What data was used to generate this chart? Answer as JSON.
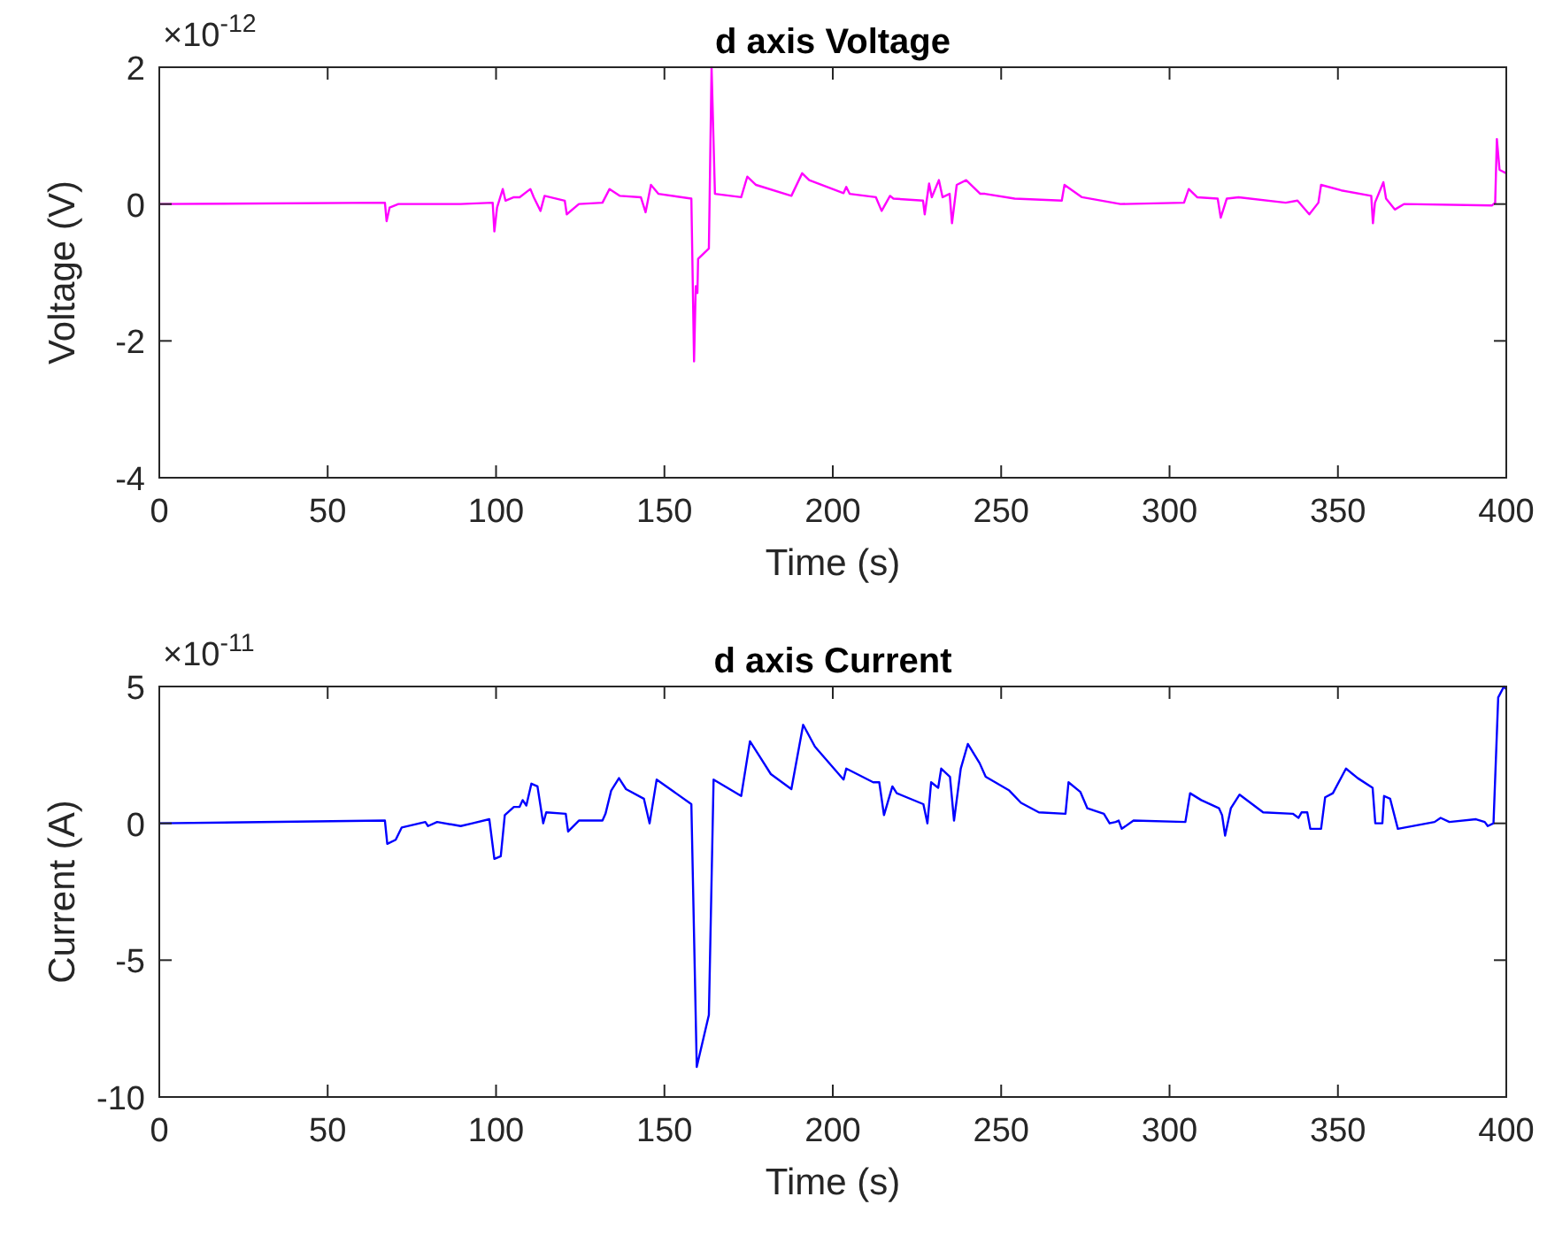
{
  "chart_data": [
    {
      "type": "line",
      "title": "d axis Voltage",
      "xlabel": "Time (s)",
      "ylabel": "Voltage (V)",
      "annotations": [
        "×10$^{-12}$"
      ],
      "xlim": [
        0,
        400
      ],
      "xticks": [
        0,
        50,
        100,
        150,
        200,
        250,
        300,
        350,
        400
      ],
      "ylim": [
        -4,
        2
      ],
      "yticks": [
        -4,
        -2,
        0,
        2
      ],
      "grid": false,
      "line_style": "solid",
      "marker": "none",
      "series": [
        {
          "color": "#ff00ff",
          "x": [
            0,
            67,
            67.5,
            68.4,
            71,
            89.5,
            99,
            99.5,
            100.3,
            102,
            102.8,
            105.3,
            107,
            110.2,
            111.2,
            113.2,
            114.4,
            120.4,
            121,
            124.6,
            131.6,
            133.7,
            136.8,
            143,
            144.4,
            146,
            148.2,
            158,
            158.8,
            159.3,
            159.8,
            160,
            163.2,
            164,
            165,
            172.8,
            174.6,
            177.2,
            187.7,
            190.9,
            193,
            203.2,
            204,
            205,
            212.8,
            214.5,
            217,
            218,
            226.8,
            227.3,
            228.6,
            229.4,
            231.5,
            232.6,
            234.7,
            235.4,
            236.8,
            239.6,
            243.8,
            245.2,
            254,
            268,
            268.8,
            274,
            285.4,
            304.3,
            305.7,
            308.2,
            314.3,
            315.2,
            317,
            320.5,
            334.5,
            338,
            341.5,
            344.2,
            345,
            351,
            359.9,
            360.4,
            361,
            363.5,
            364.3,
            366.9,
            369.6,
            395.8,
            396.7,
            397.2,
            398,
            400
          ],
          "values": [
            0,
            0.02,
            -0.25,
            -0.05,
            0,
            0,
            0.02,
            -0.4,
            -0.05,
            0.22,
            0.05,
            0.1,
            0.1,
            0.22,
            0.1,
            -0.1,
            0.12,
            0.05,
            -0.15,
            0,
            0.02,
            0.22,
            0.12,
            0.1,
            -0.12,
            0.28,
            0.15,
            0.08,
            -2.3,
            -1.2,
            -1.3,
            -0.8,
            -0.65,
            2,
            0.15,
            0.1,
            0.4,
            0.28,
            0.12,
            0.45,
            0.35,
            0.16,
            0.25,
            0.15,
            0.1,
            -0.1,
            0.12,
            0.08,
            0.05,
            -0.15,
            0.3,
            0.1,
            0.35,
            0.1,
            0.15,
            -0.28,
            0.28,
            0.35,
            0.15,
            0.15,
            0.08,
            0.05,
            0.28,
            0.1,
            0,
            0.02,
            0.22,
            0.1,
            0.08,
            -0.2,
            0.08,
            0.1,
            0.02,
            0.05,
            -0.15,
            0.02,
            0.28,
            0.2,
            0.12,
            -0.28,
            0.02,
            0.32,
            0.08,
            -0.08,
            0,
            -0.02,
            0.02,
            0.95,
            0.5,
            0.45
          ]
        }
      ]
    },
    {
      "type": "line",
      "title": "d axis Current",
      "xlabel": "Time (s)",
      "ylabel": "Current (A)",
      "annotations": [
        "×10$^{-11}$"
      ],
      "xlim": [
        0,
        400
      ],
      "xticks": [
        0,
        50,
        100,
        150,
        200,
        250,
        300,
        350,
        400
      ],
      "ylim": [
        -10,
        5
      ],
      "yticks": [
        -10,
        -5,
        0,
        5
      ],
      "grid": false,
      "line_style": "solid",
      "marker": "none",
      "series": [
        {
          "color": "#0000ff",
          "x": [
            0,
            67,
            67.7,
            70.2,
            72,
            79,
            79.8,
            82.5,
            89.5,
            93,
            98,
            99.5,
            101.4,
            102.6,
            105.3,
            107,
            107.9,
            109,
            110.5,
            112.3,
            114,
            114.9,
            120.7,
            121.4,
            124.6,
            131.6,
            132.5,
            134.2,
            136.5,
            138.6,
            143.9,
            145.6,
            147.7,
            158,
            159.6,
            163.2,
            164.6,
            172.8,
            175.4,
            178,
            181.6,
            187.7,
            191.2,
            194.7,
            203.2,
            204,
            212,
            213.8,
            215.2,
            217.7,
            219,
            226.9,
            228.1,
            229.2,
            231.3,
            232.2,
            234.8,
            236,
            238,
            240.1,
            243.6,
            245.4,
            252.4,
            255.9,
            261.2,
            269.1,
            270,
            273.5,
            275.6,
            280.5,
            282.2,
            284,
            284.9,
            285.8,
            289.3,
            304.7,
            306.1,
            309.4,
            314.7,
            315.6,
            316.5,
            318.2,
            320.8,
            327.8,
            336.6,
            338.3,
            339.2,
            340.9,
            341.8,
            345,
            346.2,
            348.5,
            352.4,
            355.9,
            360.3,
            361.1,
            363.2,
            363.7,
            365.5,
            367.8,
            378.7,
            380.5,
            383.1,
            391,
            393.6,
            394.5,
            396.2,
            397.6,
            399.3,
            400
          ],
          "values": [
            0,
            0.1,
            -0.75,
            -0.6,
            -0.15,
            0.05,
            -0.1,
            0.05,
            -0.1,
            0,
            0.15,
            -1.3,
            -1.2,
            0.3,
            0.6,
            0.6,
            0.85,
            0.65,
            1.45,
            1.35,
            0,
            0.4,
            0.35,
            -0.3,
            0.1,
            0.1,
            0.35,
            1.2,
            1.65,
            1.25,
            0.9,
            0,
            1.6,
            0.7,
            -8.9,
            -7,
            1.6,
            1,
            3,
            2.5,
            1.8,
            1.25,
            3.6,
            2.8,
            1.6,
            2,
            1.5,
            1.5,
            0.3,
            1.35,
            1.1,
            0.7,
            0,
            1.5,
            1.3,
            2,
            1.7,
            0.1,
            2,
            2.9,
            2.2,
            1.7,
            1.2,
            0.75,
            0.4,
            0.35,
            1.5,
            1.15,
            0.55,
            0.35,
            0,
            0.05,
            0.1,
            -0.2,
            0.1,
            0.05,
            1.1,
            0.85,
            0.55,
            0.3,
            -0.45,
            0.55,
            1.05,
            0.4,
            0.35,
            0.2,
            0.4,
            0.4,
            -0.2,
            -0.2,
            0.95,
            1.1,
            2,
            1.65,
            1.3,
            0,
            0,
            1,
            0.9,
            -0.2,
            0.05,
            0.2,
            0.05,
            0.15,
            0.05,
            -0.1,
            0,
            4.6,
            5,
            4.9
          ]
        }
      ]
    }
  ]
}
